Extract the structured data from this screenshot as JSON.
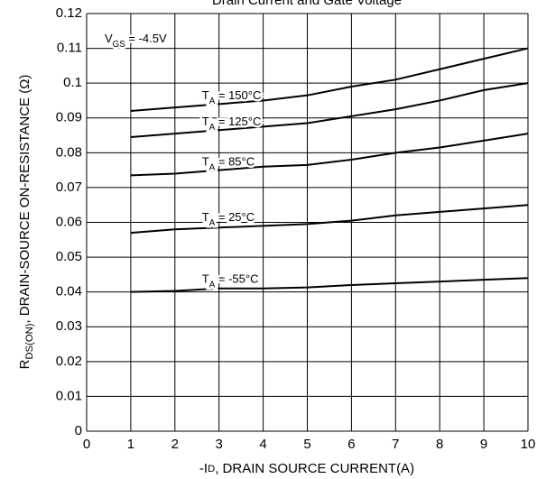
{
  "chart_data": {
    "type": "line",
    "title": "Drain Current and Gate Voltage",
    "x_label": "-ID, DRAIN SOURCE CURRENT(A)",
    "y_label": "RDS(ON), DRAIN-SOURCE ON-RESISTANCE (Ω)",
    "annotation": "VGS = -4.5V",
    "x": [
      1,
      2,
      3,
      4,
      5,
      6,
      7,
      8,
      9,
      10
    ],
    "series": [
      {
        "name": "TA = 150°C",
        "color": "#000000",
        "values": [
          0.092,
          0.093,
          0.094,
          0.095,
          0.0965,
          0.099,
          0.101,
          0.104,
          0.107,
          0.11
        ]
      },
      {
        "name": "TA = 125°C",
        "color": "#000000",
        "values": [
          0.0845,
          0.0855,
          0.0865,
          0.0875,
          0.0885,
          0.0905,
          0.0925,
          0.095,
          0.098,
          0.1
        ]
      },
      {
        "name": "TA = 85°C",
        "color": "#000000",
        "values": [
          0.0735,
          0.074,
          0.075,
          0.076,
          0.0765,
          0.078,
          0.08,
          0.0815,
          0.0835,
          0.0855
        ]
      },
      {
        "name": "TA = 25°C",
        "color": "#000000",
        "values": [
          0.057,
          0.058,
          0.0585,
          0.059,
          0.0595,
          0.0605,
          0.062,
          0.063,
          0.064,
          0.065
        ]
      },
      {
        "name": "TA = -55°C",
        "color": "#000000",
        "values": [
          0.04,
          0.0403,
          0.041,
          0.041,
          0.0413,
          0.042,
          0.0425,
          0.043,
          0.0435,
          0.044
        ]
      }
    ],
    "xlim": [
      0,
      10
    ],
    "ylim": [
      0,
      0.12
    ],
    "xticks": [
      0,
      1,
      2,
      3,
      4,
      5,
      6,
      7,
      8,
      9,
      10
    ],
    "yticks": [
      0,
      0.01,
      0.02,
      0.03,
      0.04,
      0.05,
      0.06,
      0.07,
      0.08,
      0.09,
      0.1,
      0.11,
      0.12
    ],
    "grid": true
  }
}
